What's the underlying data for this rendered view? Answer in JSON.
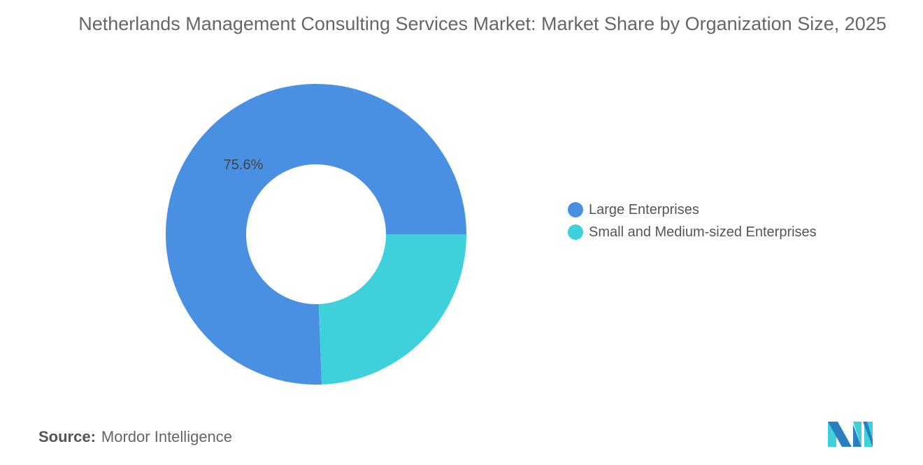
{
  "chart_data": {
    "type": "pie",
    "donut": true,
    "title": "Netherlands Management Consulting Services Market: Market Share by Organization Size, 2025",
    "series": [
      {
        "name": "Large Enterprises",
        "value": 75.6,
        "label": "75.6%",
        "color": "#4A90E2"
      },
      {
        "name": "Small and Medium-sized Enterprises",
        "value": 24.4,
        "label": "",
        "color": "#3ED1DB"
      }
    ],
    "legend_position": "right"
  },
  "source": {
    "label": "Source:",
    "value": "Mordor Intelligence"
  },
  "logo": {
    "icon": "mordor-intelligence-logo"
  }
}
